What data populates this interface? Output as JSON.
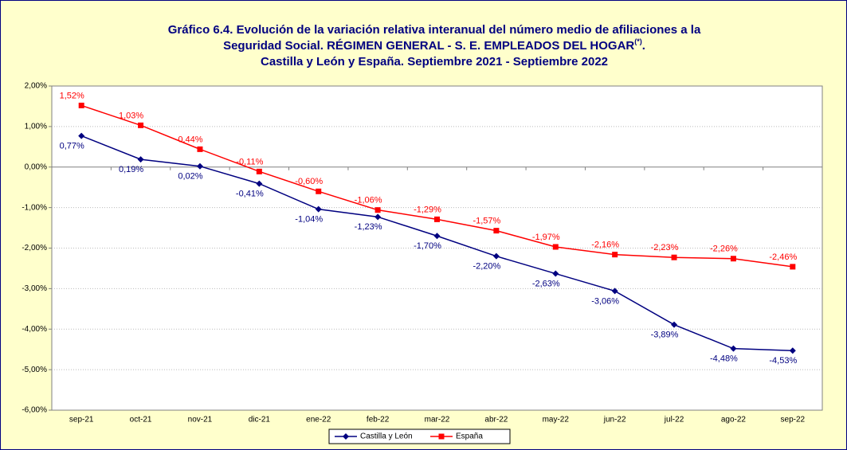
{
  "chart_data": {
    "type": "line",
    "title": [
      "Gráfico 6.4. Evolución de la variación relativa interanual del número medio de afiliaciones a la",
      "Seguridad Social. RÉGIMEN GENERAL - S. E. EMPLEADOS DEL HOGAR",
      "(*)",
      ".",
      "Castilla y León y España. Septiembre 2021 - Septiembre 2022"
    ],
    "categories": [
      "sep-21",
      "oct-21",
      "nov-21",
      "dic-21",
      "ene-22",
      "feb-22",
      "mar-22",
      "abr-22",
      "may-22",
      "jun-22",
      "jul-22",
      "ago-22",
      "sep-22"
    ],
    "series": [
      {
        "name": "Castilla y León",
        "color": "#000080",
        "marker": "diamond",
        "values": [
          0.77,
          0.19,
          0.02,
          -0.41,
          -1.04,
          -1.23,
          -1.7,
          -2.2,
          -2.63,
          -3.06,
          -3.89,
          -4.48,
          -4.53
        ],
        "value_labels": [
          "0,77%",
          "0,19%",
          "0,02%",
          "-0,41%",
          "-1,04%",
          "-1,23%",
          "-1,70%",
          "-2,20%",
          "-2,63%",
          "-3,06%",
          "-3,89%",
          "-4,48%",
          "-4,53%"
        ]
      },
      {
        "name": "España",
        "color": "#ff0000",
        "marker": "square",
        "values": [
          1.52,
          1.03,
          0.44,
          -0.11,
          -0.6,
          -1.06,
          -1.29,
          -1.57,
          -1.97,
          -2.16,
          -2.23,
          -2.26,
          -2.46
        ],
        "value_labels": [
          "1,52%",
          "1,03%",
          "0,44%",
          "-0,11%",
          "-0,60%",
          "-1,06%",
          "-1,29%",
          "-1,57%",
          "-1,97%",
          "-2,16%",
          "-2,23%",
          "-2,26%",
          "-2,46%"
        ]
      }
    ],
    "ylim": [
      -6,
      2
    ],
    "yticks": [
      {
        "value": -6,
        "label": "-6,00%"
      },
      {
        "value": -5,
        "label": "-5,00%"
      },
      {
        "value": -4,
        "label": "-4,00%"
      },
      {
        "value": -3,
        "label": "-3,00%"
      },
      {
        "value": -2,
        "label": "-2,00%"
      },
      {
        "value": -1,
        "label": "-1,00%"
      },
      {
        "value": 0,
        "label": "0,00%"
      },
      {
        "value": 1,
        "label": "1,00%"
      },
      {
        "value": 2,
        "label": "2,00%"
      }
    ],
    "grid": true,
    "legend": "bottom"
  }
}
